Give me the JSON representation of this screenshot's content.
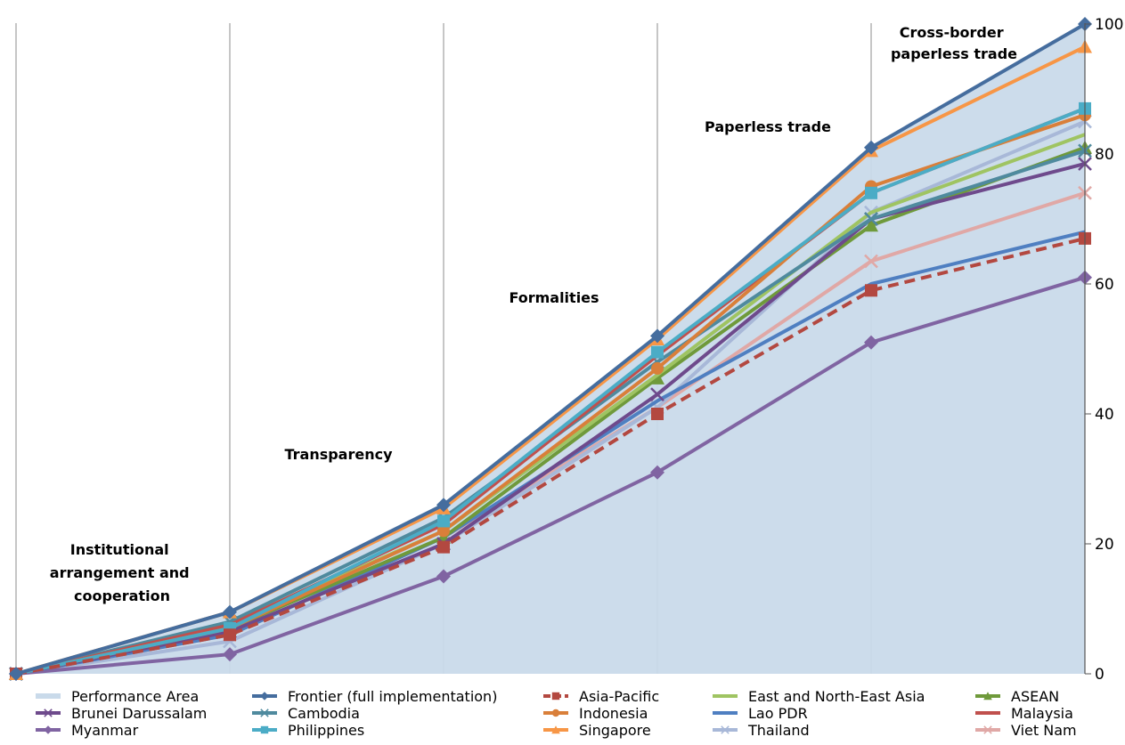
{
  "chart_data": {
    "type": "line",
    "x": [
      0,
      1,
      2,
      3,
      4,
      5
    ],
    "ylim": [
      0,
      100
    ],
    "yticks": [
      "0",
      "20",
      "40",
      "60",
      "80",
      "100"
    ],
    "y_axis_position": "right",
    "grid": "vertical",
    "stage_labels": [
      "Institutional arrangement and cooperation",
      "Transparency",
      "Formalities",
      "Paperless trade",
      "Cross-border paperless trade"
    ],
    "series": [
      {
        "name": "Performance Area",
        "kind": "area",
        "color": "#c9daea",
        "values": [
          0,
          3,
          15,
          31,
          51,
          61
        ]
      },
      {
        "name": "Frontier (full implementation)",
        "marker": "diamond",
        "color": "#456d9e",
        "values": [
          0,
          9.5,
          26,
          52,
          81,
          100
        ]
      },
      {
        "name": "Asia-Pacific",
        "marker": "square",
        "dashed": true,
        "color": "#b34840",
        "values": [
          0,
          6,
          19.5,
          40,
          59,
          67
        ]
      },
      {
        "name": "East and North-East Asia",
        "marker": "none",
        "color": "#9fc462",
        "values": [
          0,
          7.5,
          22,
          46,
          71,
          83
        ]
      },
      {
        "name": "ASEAN",
        "marker": "triangle",
        "color": "#6f9a3b",
        "values": [
          0,
          7,
          21,
          45.5,
          69,
          81
        ]
      },
      {
        "name": "Brunei Darussalam",
        "marker": "x",
        "color": "#6e4a8c",
        "values": [
          0,
          6.5,
          20,
          43,
          70,
          78.5
        ]
      },
      {
        "name": "Cambodia",
        "marker": "x",
        "color": "#4f8a9e",
        "values": [
          0,
          8,
          24,
          48,
          70,
          80.5
        ]
      },
      {
        "name": "Indonesia",
        "marker": "circle",
        "color": "#d97f3a",
        "values": [
          0,
          7,
          22,
          47,
          75,
          86
        ]
      },
      {
        "name": "Lao PDR",
        "marker": "none",
        "color": "#4f7fc1",
        "values": [
          0,
          6,
          21,
          42,
          60,
          68
        ]
      },
      {
        "name": "Malaysia",
        "marker": "none",
        "color": "#c0504d",
        "values": [
          0,
          7.5,
          23,
          49,
          74,
          87
        ]
      },
      {
        "name": "Myanmar",
        "marker": "diamond",
        "color": "#8064a2",
        "values": [
          0,
          3,
          15,
          31,
          51,
          61
        ]
      },
      {
        "name": "Philippines",
        "marker": "square",
        "color": "#4bacc6",
        "values": [
          0,
          7,
          23.5,
          49.5,
          74,
          87
        ]
      },
      {
        "name": "Singapore",
        "marker": "triangle",
        "color": "#f79646",
        "values": [
          0,
          9.5,
          25.5,
          51.5,
          80.5,
          96.5
        ]
      },
      {
        "name": "Thailand",
        "marker": "x",
        "color": "#a8b8d8",
        "values": [
          0,
          5,
          20,
          41,
          71,
          85
        ]
      },
      {
        "name": "Viet Nam",
        "marker": "x",
        "color": "#e0a8a6",
        "values": [
          0,
          6,
          21,
          41,
          63.5,
          74
        ]
      }
    ]
  }
}
